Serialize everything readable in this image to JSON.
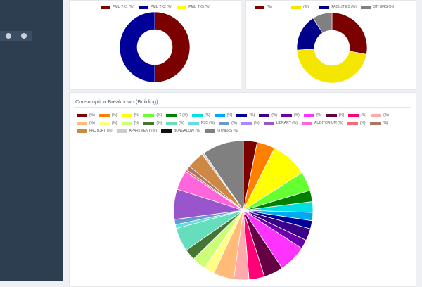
{
  "sidebar": {
    "icons": [
      "info-icon",
      "power-icon"
    ]
  },
  "card_left": {
    "legend": [
      {
        "label": "PMU TX1 (%)",
        "color": "#7b0000"
      },
      {
        "label": "PMU TX2 (%)",
        "color": "#000099"
      },
      {
        "label": "PMU TX3 (%)",
        "color": "#ffff00"
      }
    ]
  },
  "card_right": {
    "legend": [
      {
        "label": "(%)",
        "color": "#7b0000"
      },
      {
        "label": "(%)",
        "color": "#f5e600"
      },
      {
        "label": "FACILITIES (%)",
        "color": "#000088"
      },
      {
        "label": "OTHERS (%)",
        "color": "#808080"
      }
    ]
  },
  "card_bottom": {
    "title": "Consumption Breakdown (Building)",
    "legend": [
      {
        "label": "(%)",
        "color": "#7b0000"
      },
      {
        "label": "(%)",
        "color": "#ff8000"
      },
      {
        "label": "(%)",
        "color": "#ffff00"
      },
      {
        "label": "(%)",
        "color": "#66ff33"
      },
      {
        "label": "R (%)",
        "color": "#008000"
      },
      {
        "label": "(%)",
        "color": "#00e0e0"
      },
      {
        "label": "(%)",
        "color": "#00aaee"
      },
      {
        "label": "(%)",
        "color": "#000099"
      },
      {
        "label": "(%)",
        "color": "#3a0088"
      },
      {
        "label": "(%)",
        "color": "#6a00aa"
      },
      {
        "label": "(%)",
        "color": "#ff33ff"
      },
      {
        "label": "(%)",
        "color": "#660044"
      },
      {
        "label": "(%)",
        "color": "#ff0077"
      },
      {
        "label": "(%)",
        "color": "#ffaaaa"
      },
      {
        "label": "(%)",
        "color": "#ffbb77"
      },
      {
        "label": "(%)",
        "color": "#ffff88"
      },
      {
        "label": "(%)",
        "color": "#ccff77"
      },
      {
        "label": "(%)",
        "color": "#447733"
      },
      {
        "label": "(%)",
        "color": "#66ddbb"
      },
      {
        "label": "FSC (%)",
        "color": "#66dddd"
      },
      {
        "label": "(%)",
        "color": "#6699cc"
      },
      {
        "label": "(%)",
        "color": "#aa88ff"
      },
      {
        "label": "LIBRARY (%)",
        "color": "#9955cc"
      },
      {
        "label": "AUDITORIUM (%)",
        "color": "#ff66dd"
      },
      {
        "label": "(%)",
        "color": "#ff6677"
      },
      {
        "label": "(%)",
        "color": "#aa7766"
      },
      {
        "label": "FACTORY (%)",
        "color": "#cc8844"
      },
      {
        "label": "APARTMENT (%)",
        "color": "#cccccc"
      },
      {
        "label": "BUNGALOW (%)",
        "color": "#111111"
      },
      {
        "label": "OTHERS (%)",
        "color": "#808080"
      }
    ]
  },
  "chart_data": [
    {
      "type": "pie",
      "hole": 0.5,
      "labels": [
        "PMU TX1 (%)",
        "PMU TX2 (%)",
        "PMU TX3 (%)"
      ],
      "values": [
        50,
        50,
        0
      ],
      "colors": [
        "#7b0000",
        "#000099",
        "#ffff00"
      ]
    },
    {
      "type": "pie",
      "hole": 0.5,
      "labels": [
        "(%)",
        "(%)",
        "FACILITIES (%)",
        "OTHERS (%)"
      ],
      "values": [
        28,
        46,
        17,
        9
      ],
      "colors": [
        "#7b0000",
        "#f5e600",
        "#000088",
        "#808080"
      ]
    },
    {
      "type": "pie",
      "labels": [
        "(%)",
        "(%)",
        "(%)",
        "(%)",
        "R (%)",
        "(%)",
        "(%)",
        "(%)",
        "(%)",
        "(%)",
        "(%)",
        "(%)",
        "(%)",
        "(%)",
        "(%)",
        "(%)",
        "(%)",
        "(%)",
        "(%)",
        "FSC (%)",
        "(%)",
        "(%)",
        "LIBRARY (%)",
        "AUDITORIUM (%)",
        "(%)",
        "(%)",
        "FACTORY (%)",
        "APARTMENT (%)",
        "BUNGALOW (%)",
        "OTHERS (%)"
      ],
      "values": [
        3.2,
        4.2,
        8.5,
        4.5,
        2.6,
        2.5,
        1.9,
        1.9,
        2.8,
        2.1,
        6.4,
        4.5,
        3.6,
        3.5,
        4.8,
        2.4,
        3.3,
        2.6,
        5.5,
        0.9,
        1.2,
        0.0,
        7.0,
        4.5,
        0.5,
        1.0,
        4.0,
        0.5,
        0.0,
        9.6
      ],
      "colors": [
        "#7b0000",
        "#ff8000",
        "#ffff00",
        "#66ff33",
        "#008000",
        "#00e0e0",
        "#00aaee",
        "#000099",
        "#3a0088",
        "#6a00aa",
        "#ff33ff",
        "#660044",
        "#ff0077",
        "#ffaaaa",
        "#ffbb77",
        "#ffff88",
        "#ccff77",
        "#447733",
        "#66ddbb",
        "#66dddd",
        "#6699cc",
        "#aa88ff",
        "#9955cc",
        "#ff66dd",
        "#ff6677",
        "#aa7766",
        "#cc8844",
        "#cccccc",
        "#111111",
        "#808080"
      ]
    }
  ]
}
